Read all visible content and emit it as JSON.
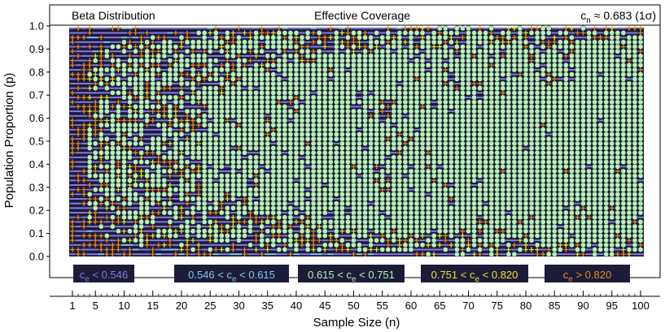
{
  "chart_data": {
    "type": "heatmap",
    "title": "Effective Coverage",
    "subtitle": "Beta Distribution",
    "annotation": {
      "base": "c",
      "sub": "n",
      "text": " ≈ 0.683 (1σ)"
    },
    "xlabel": "Sample Size (n)",
    "ylabel": "Population Proportion (p)",
    "xlim": [
      1,
      100
    ],
    "ylim": [
      0.0,
      1.0
    ],
    "x_ticks": [
      1,
      5,
      10,
      15,
      20,
      25,
      30,
      35,
      40,
      45,
      50,
      55,
      60,
      65,
      70,
      75,
      80,
      85,
      90,
      95,
      100
    ],
    "y_ticks": [
      "0.0",
      "0.1",
      "0.2",
      "0.3",
      "0.4",
      "0.5",
      "0.6",
      "0.7",
      "0.8",
      "0.9",
      "1.0"
    ],
    "grid_n": {
      "from": 1,
      "to": 100,
      "step": 1
    },
    "grid_p": {
      "from": 0.01,
      "to": 0.99,
      "step": 0.02
    },
    "classes": [
      {
        "label_pre": "",
        "sub_pre": "",
        "label_mid": "c",
        "sub": "e",
        "label_post": " < 0.546",
        "color": "#8878e8",
        "marker": "dash"
      },
      {
        "label_pre": "0.546 < ",
        "sub_pre": "",
        "label_mid": "c",
        "sub": "e",
        "label_post": " < 0.615",
        "color": "#7ec8f0",
        "marker": "dash"
      },
      {
        "label_pre": "0.615 < ",
        "sub_pre": "",
        "label_mid": "c",
        "sub": "e",
        "label_post": " < 0.751",
        "color": "#b8f0b8",
        "marker": "circle"
      },
      {
        "label_pre": "0.751 < ",
        "sub_pre": "",
        "label_mid": "c",
        "sub": "e",
        "label_post": " < 0.820",
        "color": "#f0e030",
        "marker": "cross"
      },
      {
        "label_pre": "",
        "sub_pre": "",
        "label_mid": "c",
        "sub": "e",
        "label_post": " > 0.820",
        "color": "#f08820",
        "marker": "cross"
      }
    ],
    "background": "#1c1c38",
    "grid": false
  }
}
